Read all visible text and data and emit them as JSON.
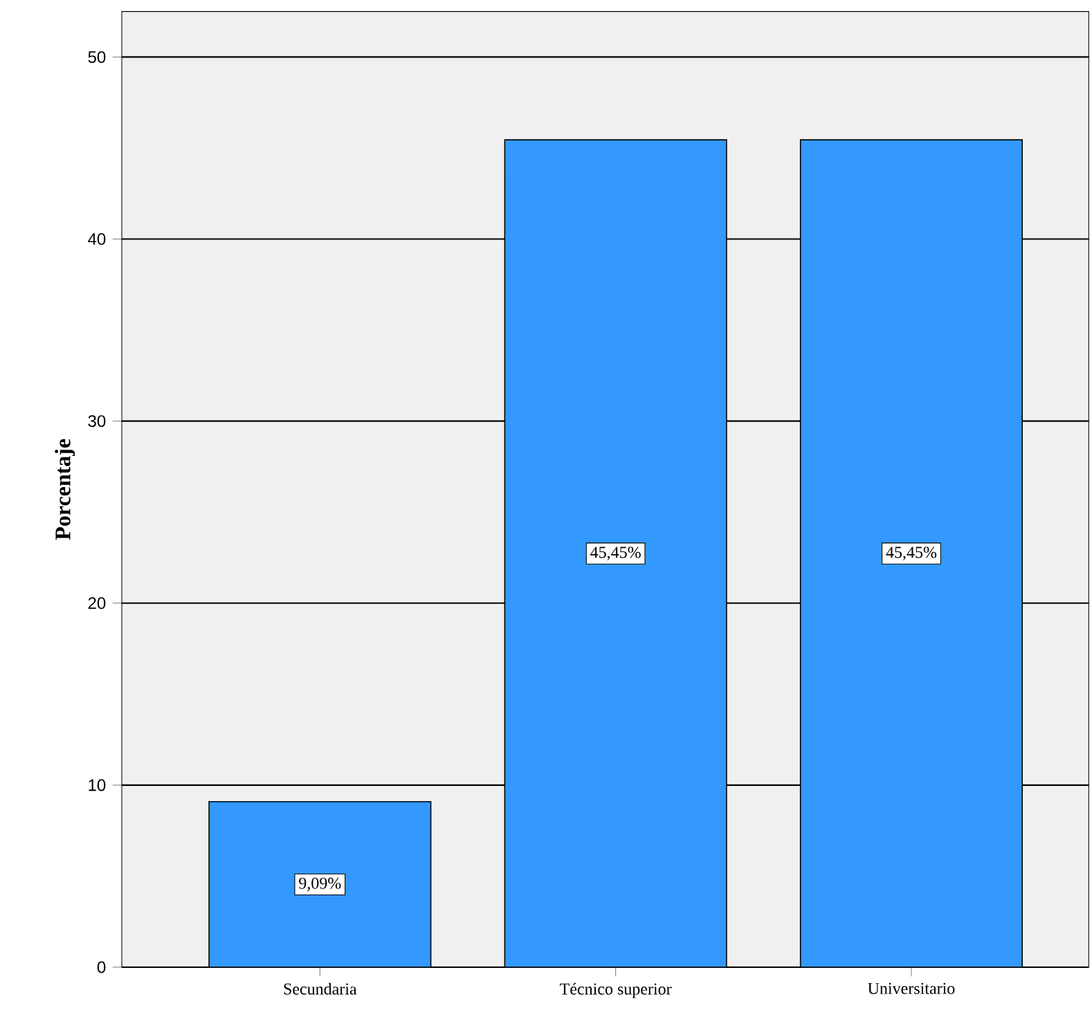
{
  "chart_data": {
    "type": "bar",
    "ylabel": "Porcentaje",
    "categories": [
      "Secundaria",
      "Técnico superior",
      "Universitario"
    ],
    "values": [
      9.09,
      45.45,
      45.45
    ],
    "value_labels": [
      "9,09%",
      "45,45%",
      "45,45%"
    ],
    "color": "#3399ff",
    "ylim": [
      0,
      52.5
    ],
    "yticks": [
      0,
      10,
      20,
      30,
      40,
      50
    ],
    "grid": "y"
  }
}
